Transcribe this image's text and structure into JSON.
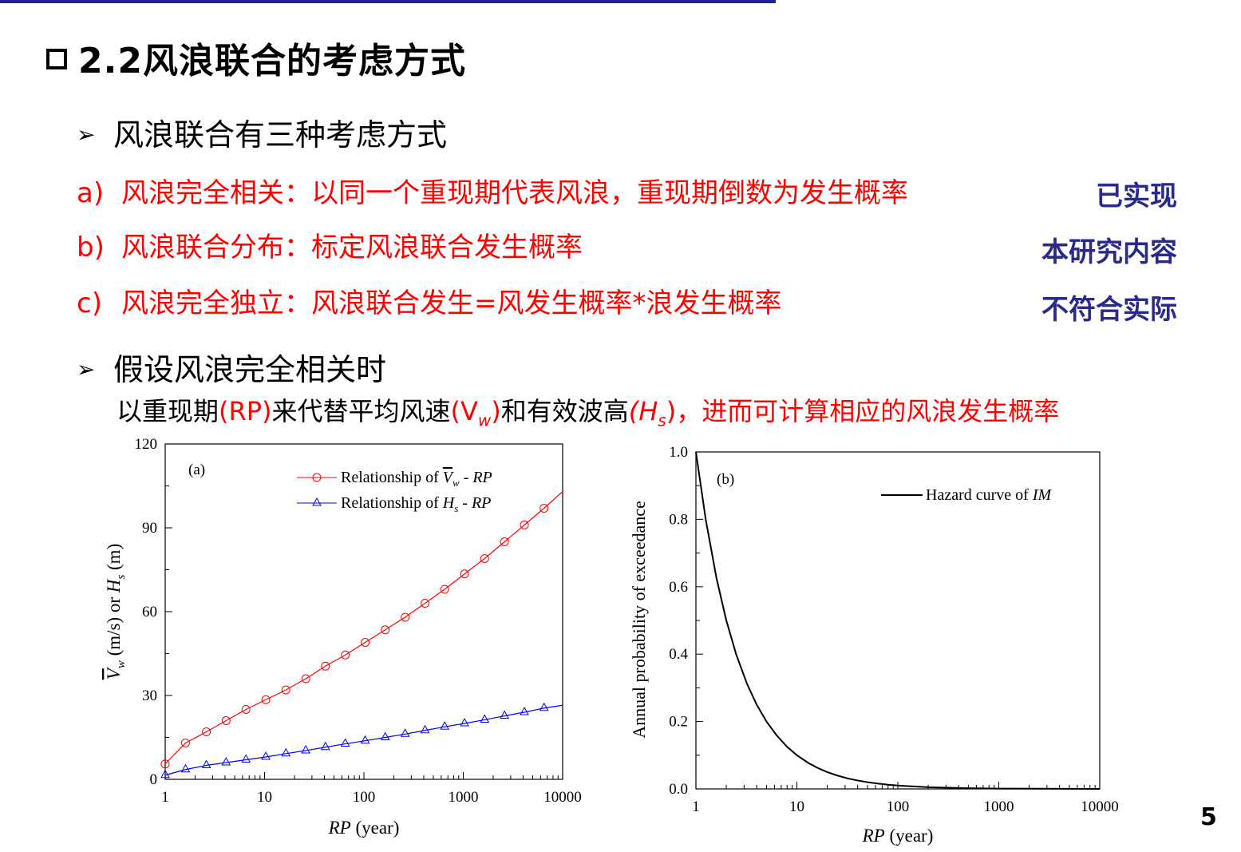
{
  "slide": {
    "title": "2.2风浪联合的考虑方式",
    "bullet1": "风浪联合有三种考虑方式",
    "items": [
      {
        "label": "a)",
        "text": "风浪完全相关：以同一个重现期代表风浪，重现期倒数为发生概率",
        "tag": "已实现"
      },
      {
        "label": "b)",
        "text": "风浪联合分布：标定风浪联合发生概率",
        "tag": "本研究内容"
      },
      {
        "label": "c)",
        "text": "风浪完全独立：风浪联合发生=风发生概率*浪发生概率",
        "tag": "不符合实际"
      }
    ],
    "bullet2": "假设风浪完全相关时",
    "subline": {
      "p1": "以重现期",
      "p2": "(RP)",
      "p3": "来代替平均风速",
      "p4": "(V",
      "p4sub": "w",
      "p5": ")",
      "p6": "和有效波高",
      "p7": "(H",
      "p7sub": "s",
      "p8": ")",
      "p9": "，进而可计算相应的风浪发生概率"
    },
    "page_number": "5",
    "colors": {
      "accent_red": "#ff0000",
      "tag_blue": "#2a2a8a",
      "topbar": "#1f1f9a"
    }
  },
  "chart_data": [
    {
      "type": "line",
      "panel": "(a)",
      "xscale": "log",
      "xlim": [
        1,
        10000
      ],
      "ylim": [
        0,
        120
      ],
      "xticks": [
        1,
        10,
        100,
        1000,
        10000
      ],
      "xtick_labels": [
        "1",
        "10",
        "100",
        "1000",
        "10000"
      ],
      "yticks": [
        0,
        30,
        60,
        90,
        120
      ],
      "ytick_labels": [
        "0",
        "30",
        "60",
        "90",
        "120"
      ],
      "xlabel": {
        "italic": "RP",
        "rest": " (year)"
      },
      "ylabel": {
        "v": "V",
        "vsub": "w",
        "mid": " (m/s) or ",
        "h": "H",
        "hsub": "s",
        "end": " (m)"
      },
      "series": [
        {
          "name": "Relationship of V̄w - RP",
          "legend": {
            "pre": "Relationship of ",
            "sym": "V",
            "sub": "w",
            "post": " - ",
            "italic": "RP"
          },
          "color": "#ff0000",
          "marker": "circle",
          "x": [
            1,
            1.6,
            2.6,
            4.1,
            6.5,
            10.3,
            16.4,
            26,
            41,
            65,
            103,
            164,
            260,
            412,
            650,
            1030,
            1640,
            2600,
            4120,
            6500
          ],
          "y": [
            5.5,
            13,
            17,
            21,
            25,
            28.5,
            32,
            36,
            40.5,
            44.5,
            49,
            53.5,
            58,
            63,
            68,
            73.5,
            79,
            85,
            91,
            97
          ]
        },
        {
          "name": "Relationship of Hs - RP",
          "legend": {
            "pre": "Relationship of ",
            "sym": "H",
            "sub": "s",
            "post": " - ",
            "italic": "RP"
          },
          "color": "#0000ff",
          "marker": "triangle",
          "x": [
            1,
            1.6,
            2.6,
            4.1,
            6.5,
            10.3,
            16.4,
            26,
            41,
            65,
            103,
            164,
            260,
            412,
            650,
            1030,
            1640,
            2600,
            4120,
            6500
          ],
          "y": [
            1.5,
            3.5,
            5,
            6,
            7,
            8,
            9.2,
            10.3,
            11.5,
            12.7,
            13.8,
            15,
            16.2,
            17.5,
            18.8,
            20,
            21.3,
            22.7,
            24,
            25.5
          ]
        }
      ],
      "line_end": {
        "x": 10000,
        "y_red": 103,
        "y_blue": 26.5
      }
    },
    {
      "type": "line",
      "panel": "(b)",
      "xscale": "log",
      "xlim": [
        1,
        10000
      ],
      "ylim": [
        0,
        1.0
      ],
      "xticks": [
        1,
        10,
        100,
        1000,
        10000
      ],
      "xtick_labels": [
        "1",
        "10",
        "100",
        "1000",
        "10000"
      ],
      "yticks": [
        0,
        0.2,
        0.4,
        0.6,
        0.8,
        1.0
      ],
      "ytick_labels": [
        "0.0",
        "0.2",
        "0.4",
        "0.6",
        "0.8",
        "1.0"
      ],
      "xlabel": {
        "italic": "RP",
        "rest": " (year)"
      },
      "ylabel": "Annual probability of exceedance",
      "series": [
        {
          "name": "Hazard curve of IM",
          "legend": {
            "pre": "Hazard curve of ",
            "italic": "IM"
          },
          "color": "#000000",
          "function": "1/RP",
          "x": [
            1,
            1.25,
            1.6,
            2,
            2.5,
            3.2,
            4,
            5,
            6.3,
            8,
            10,
            13,
            16,
            20,
            25,
            32,
            40,
            50,
            63,
            80,
            100,
            200,
            500,
            1000,
            10000
          ],
          "y": [
            1,
            0.8,
            0.625,
            0.5,
            0.4,
            0.3125,
            0.25,
            0.2,
            0.159,
            0.125,
            0.1,
            0.077,
            0.0625,
            0.05,
            0.04,
            0.031,
            0.025,
            0.02,
            0.016,
            0.0125,
            0.01,
            0.005,
            0.002,
            0.001,
            0.0001
          ]
        }
      ]
    }
  ]
}
